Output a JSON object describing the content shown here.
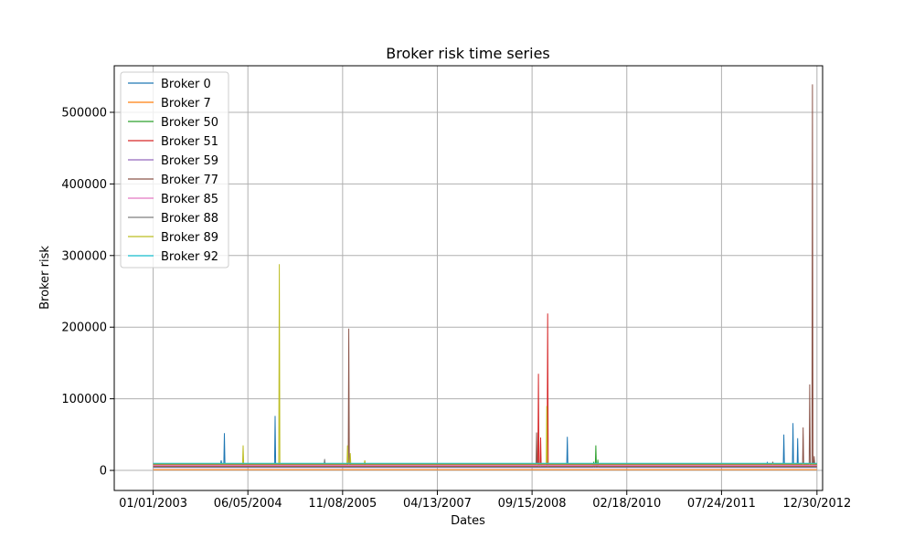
{
  "chart_data": {
    "type": "line",
    "title": "Broker risk time series",
    "xlabel": "Dates",
    "ylabel": "Broker risk",
    "x_range": [
      "2002-06-01",
      "2013-01-30"
    ],
    "ylim": [
      -28000,
      565000
    ],
    "grid": true,
    "legend_position": "upper-left",
    "x_ticks": [
      "01/01/2003",
      "06/05/2004",
      "11/08/2005",
      "04/13/2007",
      "09/15/2008",
      "02/18/2010",
      "07/24/2011",
      "12/30/2012"
    ],
    "y_ticks": [
      0,
      100000,
      200000,
      300000,
      400000,
      500000
    ],
    "series": [
      {
        "name": "Broker 0",
        "color": "#1f77b4",
        "baseline": 9000,
        "points": [
          [
            "2004-01-20",
            9000
          ],
          [
            "2004-01-28",
            52000
          ],
          [
            "2004-02-05",
            9000
          ],
          [
            "2004-01-10",
            14000
          ],
          [
            "2004-10-25",
            9000
          ],
          [
            "2004-11-02",
            76000
          ],
          [
            "2004-11-10",
            9000
          ],
          [
            "2009-03-20",
            9000
          ],
          [
            "2009-03-28",
            47000
          ],
          [
            "2009-04-05",
            9000
          ],
          [
            "2012-04-01",
            11000
          ],
          [
            "2012-07-01",
            50000
          ],
          [
            "2012-08-20",
            66000
          ],
          [
            "2012-09-15",
            45000
          ],
          [
            "2012-10-01",
            10000
          ]
        ]
      },
      {
        "name": "Broker 7",
        "color": "#ff7f0e",
        "baseline": 1000,
        "points": []
      },
      {
        "name": "Broker 50",
        "color": "#2ca02c",
        "baseline": 5000,
        "points": [
          [
            "2009-08-20",
            12000
          ],
          [
            "2009-09-01",
            35000
          ],
          [
            "2009-09-12",
            15000
          ]
        ]
      },
      {
        "name": "Broker 51",
        "color": "#d62728",
        "baseline": 6000,
        "points": [
          [
            "2008-10-20",
            135000
          ],
          [
            "2008-12-10",
            219000
          ],
          [
            "2008-11-01",
            46000
          ]
        ]
      },
      {
        "name": "Broker 59",
        "color": "#9467bd",
        "baseline": 4000,
        "points": []
      },
      {
        "name": "Broker 77",
        "color": "#8c564b",
        "baseline": 8000,
        "points": [
          [
            "2005-12-12",
            198000
          ],
          [
            "2008-10-10",
            53000
          ],
          [
            "2012-05-01",
            12000
          ],
          [
            "2012-10-15",
            60000
          ],
          [
            "2012-11-20",
            120000
          ],
          [
            "2012-12-05",
            539000
          ],
          [
            "2012-12-15",
            20000
          ]
        ]
      },
      {
        "name": "Broker 85",
        "color": "#e377c2",
        "baseline": 7000,
        "points": []
      },
      {
        "name": "Broker 88",
        "color": "#7f7f7f",
        "baseline": 9500,
        "points": [
          [
            "2005-08-01",
            16000
          ]
        ]
      },
      {
        "name": "Broker 89",
        "color": "#bcbd22",
        "baseline": 9000,
        "points": [
          [
            "2004-05-10",
            35000
          ],
          [
            "2004-11-25",
            288000
          ],
          [
            "2005-12-05",
            35000
          ],
          [
            "2005-12-20",
            24000
          ],
          [
            "2006-03-10",
            14000
          ],
          [
            "2008-12-05",
            90000
          ]
        ]
      },
      {
        "name": "Broker 92",
        "color": "#17becf",
        "baseline": 10000,
        "points": []
      }
    ]
  }
}
